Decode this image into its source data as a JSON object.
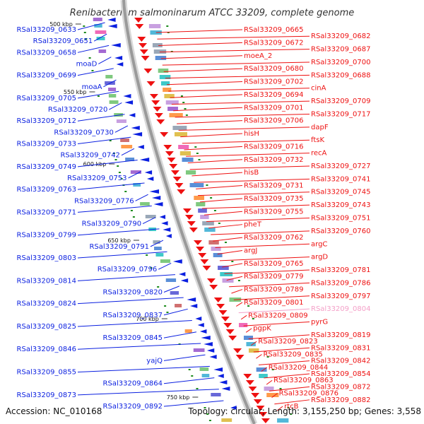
{
  "title": "Renibacterium salmoninarum ATCC 33209, complete genome",
  "accession": "Accession: NC_010168",
  "topology": "Topology: circular; Length: 3,155,250 bp; Genes: 3,558",
  "colors": {
    "minus_strand": "#0a1fe0",
    "plus_strand": "#ee1111",
    "faded_label": "#f4a0c8",
    "backbone": "#9a9a9a",
    "tick": "#1a8a1a"
  },
  "ticks": [
    "500 kbp",
    "550 kbp",
    "600 kbp",
    "650 kbp",
    "700 kbp",
    "750 kbp"
  ],
  "left_labels": [
    "RSal33209_0633",
    "RSal33209_0651",
    "RSal33209_0658",
    "moaD",
    "RSal33209_0699",
    "moaA",
    "RSal33209_0705",
    "RSal33209_0720",
    "RSal33209_0712",
    "RSal33209_0730",
    "RSal33209_0733",
    "RSal33209_0742",
    "RSal33209_0749",
    "RSal33209_0753",
    "RSal33209_0763",
    "RSal33209_0776",
    "RSal33209_0771",
    "RSal33209_0790",
    "RSal33209_0799",
    "RSal33209_0791",
    "RSal33209_0803",
    "RSal33209_0796",
    "RSal33209_0814",
    "RSal33209_0820",
    "RSal33209_0824",
    "RSal33209_0837",
    "RSal33209_0825",
    "RSal33209_0845",
    "RSal33209_0846",
    "yajQ",
    "RSal33209_0855",
    "RSal33209_0864",
    "RSal33209_0873",
    "RSal33209_0892"
  ],
  "right_labels": [
    "RSal33209_0665",
    "RSal33209_0682",
    "RSal33209_0672",
    "RSal33209_0687",
    "moeA_2",
    "RSal33209_0700",
    "RSal33209_0680",
    "RSal33209_0688",
    "RSal33209_0702",
    "cinA",
    "RSal33209_0694",
    "RSal33209_0709",
    "RSal33209_0701",
    "RSal33209_0717",
    "RSal33209_0706",
    "dapF",
    "hisH",
    "ftsK",
    "RSal33209_0716",
    "recA",
    "RSal33209_0732",
    "RSal33209_0727",
    "hisB",
    "RSal33209_0741",
    "RSal33209_0731",
    "RSal33209_0745",
    "RSal33209_0735",
    "RSal33209_0743",
    "RSal33209_0755",
    "RSal33209_0751",
    "pheT",
    "RSal33209_0760",
    "RSal33209_0762",
    "argC",
    "argJ",
    "argD",
    "RSal33209_0765",
    "RSal33209_0781",
    "RSal33209_0779",
    "RSal33209_0786",
    "RSal33209_0789",
    "RSal33209_0797",
    "RSal33209_0801",
    "RSal33209_0804",
    "RSal33209_0809",
    "pyrG",
    "pgpK",
    "RSal33209_0819",
    "RSal33209_0823",
    "RSal33209_0831",
    "RSal33209_0835",
    "RSal33209_0842",
    "RSal33209_0844",
    "RSal33209_0854",
    "RSal33209_0863",
    "RSal33209_0872",
    "RSal33209_0876",
    "RSal33209_0882",
    "rtcB"
  ]
}
